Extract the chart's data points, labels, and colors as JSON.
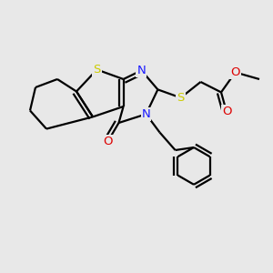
{
  "background_color": "#e8e8e8",
  "atom_colors": {
    "C": "#000000",
    "N": "#1a1aff",
    "O": "#dd0000",
    "S": "#cccc00",
    "H": "#000000"
  },
  "bond_lw": 1.6,
  "font_size": 9.5,
  "dbo": 0.07
}
